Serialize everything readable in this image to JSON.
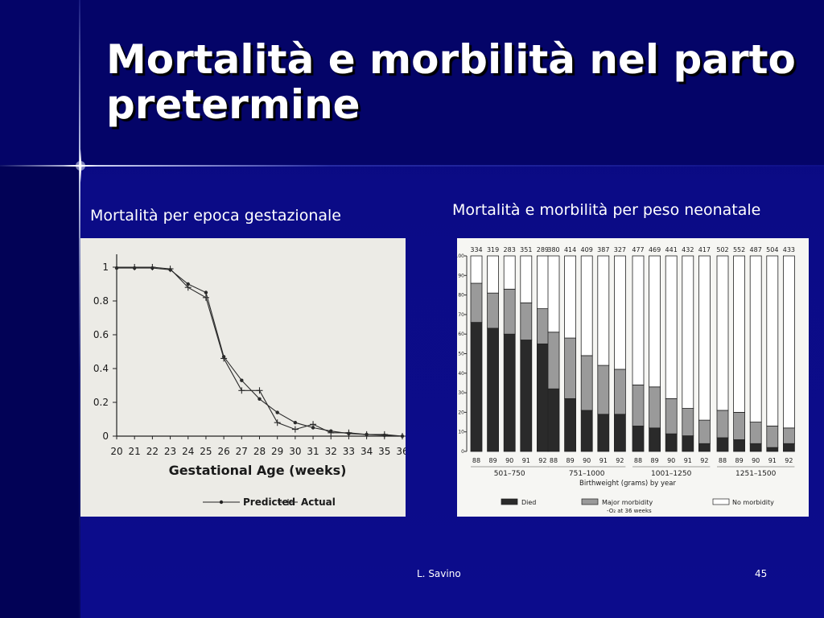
{
  "slide": {
    "title": "Mortalità e morbilità nel parto pretermine",
    "caption_left": "Mortalità per epoca gestazionale",
    "caption_right": "Mortalità e morbilità per peso neonatale",
    "footer_author": "L. Savino",
    "page_number": "45",
    "colors": {
      "background": "#0c0c8a",
      "title": "#ffffff",
      "accent_line": "#dce4ff"
    }
  },
  "chart_data": [
    {
      "type": "line",
      "title": "",
      "xlabel": "Gestational Age (weeks)",
      "ylabel": "",
      "x": [
        20,
        21,
        22,
        23,
        24,
        25,
        26,
        27,
        28,
        29,
        30,
        31,
        32,
        33,
        34,
        35,
        36
      ],
      "x_tick_labels": [
        "20",
        "21",
        "22",
        "23",
        "24",
        "25",
        "26",
        "27",
        "28",
        "29",
        "30",
        "31",
        "32",
        "33",
        "34",
        "35",
        "36"
      ],
      "y_tick_labels": [
        "0",
        "0.2",
        "0.4",
        "0.6",
        "0.8",
        "1"
      ],
      "ylim": [
        0,
        1.05
      ],
      "series": [
        {
          "name": "Predicted",
          "marker": "dot",
          "values": [
            0.995,
            0.995,
            0.995,
            0.985,
            0.9,
            0.85,
            0.47,
            0.33,
            0.22,
            0.14,
            0.08,
            0.05,
            0.03,
            0.015,
            0.01,
            0.005,
            0.0
          ]
        },
        {
          "name": "Actual",
          "marker": "cross",
          "values": [
            1.0,
            1.0,
            1.0,
            0.99,
            0.88,
            0.82,
            0.46,
            0.27,
            0.27,
            0.08,
            0.04,
            0.07,
            0.02,
            0.02,
            0.01,
            0.01,
            0.0
          ]
        }
      ],
      "legend": [
        "Predicted",
        "Actual"
      ],
      "legend_position": "bottom"
    },
    {
      "type": "bar",
      "stacked": true,
      "title": "",
      "xlabel": "Birthweight (grams) by year",
      "ylim": [
        0,
        100
      ],
      "y_tick_labels": [
        "0",
        "10",
        "20",
        "30",
        "40",
        "50",
        "60",
        "70",
        "80",
        "90",
        "100"
      ],
      "groups": [
        {
          "label": "501–750",
          "years": [
            "88",
            "89",
            "90",
            "91",
            "92"
          ],
          "n": [
            "334",
            "319",
            "283",
            "351",
            "289"
          ]
        },
        {
          "label": "751–1000",
          "years": [
            "88",
            "89",
            "90",
            "91",
            "92"
          ],
          "n": [
            "380",
            "414",
            "409",
            "387",
            "327"
          ]
        },
        {
          "label": "1001–1250",
          "years": [
            "88",
            "89",
            "90",
            "91",
            "92"
          ],
          "n": [
            "477",
            "469",
            "441",
            "432",
            "417"
          ]
        },
        {
          "label": "1251–1500",
          "years": [
            "88",
            "89",
            "90",
            "91",
            "92"
          ],
          "n": [
            "502",
            "552",
            "487",
            "504",
            "433"
          ]
        }
      ],
      "series": [
        {
          "name": "Died",
          "color": "#2a2a2a",
          "values": [
            66,
            63,
            60,
            57,
            55,
            32,
            27,
            21,
            19,
            19,
            13,
            12,
            9,
            8,
            4,
            7,
            6,
            4,
            2,
            4
          ]
        },
        {
          "name": "Major morbidity -O₂ at 36 weeks",
          "color": "#9a9a9a",
          "values": [
            20,
            18,
            23,
            19,
            18,
            29,
            31,
            28,
            25,
            23,
            21,
            21,
            18,
            14,
            12,
            14,
            14,
            11,
            11,
            8
          ]
        },
        {
          "name": "No morbidity",
          "color": "#ffffff",
          "values": [
            14,
            19,
            17,
            24,
            27,
            39,
            42,
            51,
            56,
            58,
            66,
            67,
            73,
            78,
            84,
            79,
            80,
            85,
            87,
            88
          ]
        }
      ],
      "legend": [
        "Died",
        "Major morbidity",
        "-O₂ at 36 weeks",
        "No morbidity"
      ],
      "legend_position": "bottom"
    }
  ]
}
